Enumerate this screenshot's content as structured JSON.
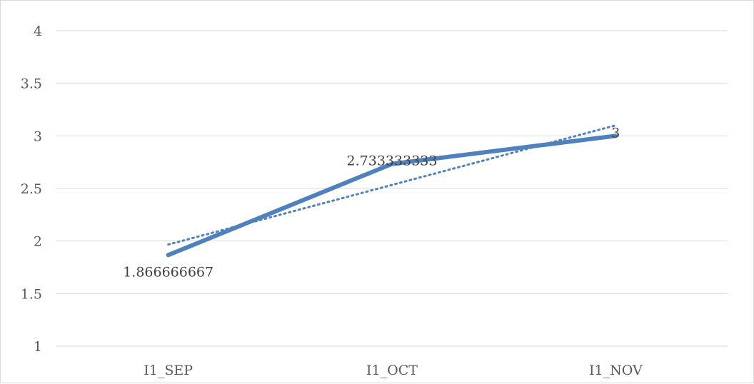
{
  "chart_data": {
    "type": "line",
    "title": "",
    "xlabel": "",
    "ylabel": "",
    "categories": [
      "I1_SEP",
      "I1_OCT",
      "I1_NOV"
    ],
    "series": [
      {
        "values": [
          1.866666667,
          2.733333333,
          3
        ],
        "data_labels": [
          "1.866666667",
          "2.733333333",
          "3"
        ],
        "color": "#4f81bd",
        "trendline": {
          "type": "linear",
          "style": "dotted",
          "color": "#4f81bd"
        }
      }
    ],
    "ylim": [
      1,
      4
    ],
    "yticks": [
      "1",
      "1.5",
      "2",
      "2.5",
      "3",
      "3.5",
      "4"
    ],
    "grid": true,
    "legend": "none",
    "colors": {
      "gridline": "#d9d9d9",
      "axis": "#d9d9d9",
      "text": "#595959"
    }
  }
}
